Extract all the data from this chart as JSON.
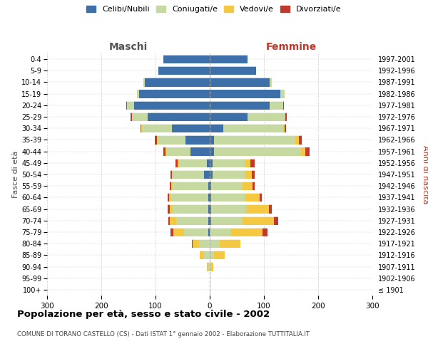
{
  "age_groups": [
    "100+",
    "95-99",
    "90-94",
    "85-89",
    "80-84",
    "75-79",
    "70-74",
    "65-69",
    "60-64",
    "55-59",
    "50-54",
    "45-49",
    "40-44",
    "35-39",
    "30-34",
    "25-29",
    "20-24",
    "15-19",
    "10-14",
    "5-9",
    "0-4"
  ],
  "birth_years": [
    "≤ 1901",
    "1902-1906",
    "1907-1911",
    "1912-1916",
    "1917-1921",
    "1922-1926",
    "1927-1931",
    "1932-1936",
    "1937-1941",
    "1942-1946",
    "1947-1951",
    "1952-1956",
    "1957-1961",
    "1962-1966",
    "1967-1971",
    "1972-1976",
    "1977-1981",
    "1982-1986",
    "1987-1991",
    "1992-1996",
    "1997-2001"
  ],
  "male": {
    "celibi": [
      0,
      0,
      0,
      0,
      0,
      2,
      2,
      3,
      3,
      3,
      10,
      5,
      35,
      45,
      70,
      115,
      140,
      130,
      120,
      95,
      85
    ],
    "coniugati": [
      0,
      0,
      3,
      10,
      20,
      45,
      60,
      65,
      68,
      65,
      58,
      52,
      45,
      50,
      55,
      28,
      12,
      4,
      2,
      0,
      0
    ],
    "vedovi": [
      0,
      0,
      2,
      8,
      12,
      20,
      12,
      6,
      4,
      3,
      2,
      2,
      2,
      2,
      1,
      1,
      1,
      0,
      0,
      0,
      0
    ],
    "divorziati": [
      0,
      0,
      0,
      0,
      1,
      5,
      2,
      4,
      3,
      3,
      2,
      4,
      3,
      4,
      2,
      2,
      1,
      0,
      0,
      0,
      0
    ]
  },
  "female": {
    "nubili": [
      0,
      0,
      0,
      0,
      0,
      0,
      2,
      2,
      2,
      3,
      5,
      5,
      8,
      8,
      25,
      70,
      110,
      130,
      110,
      85,
      70
    ],
    "coniugate": [
      0,
      0,
      2,
      8,
      18,
      40,
      58,
      65,
      62,
      58,
      60,
      60,
      160,
      150,
      110,
      68,
      25,
      8,
      4,
      0,
      0
    ],
    "vedove": [
      0,
      0,
      4,
      20,
      38,
      58,
      58,
      42,
      28,
      18,
      12,
      10,
      8,
      6,
      3,
      2,
      1,
      0,
      0,
      0,
      0
    ],
    "divorziate": [
      0,
      0,
      0,
      0,
      1,
      8,
      8,
      6,
      4,
      4,
      6,
      8,
      8,
      6,
      3,
      2,
      1,
      0,
      0,
      0,
      0
    ]
  },
  "colors": {
    "celibi": "#3d6fa8",
    "coniugati": "#c5d9a0",
    "vedovi": "#f5c842",
    "divorziati": "#c0392b"
  },
  "title": "Popolazione per età, sesso e stato civile - 2002",
  "subtitle": "COMUNE DI TORANO CASTELLO (CS) - Dati ISTAT 1° gennaio 2002 - Elaborazione TUTTITALIA.IT",
  "maschi_label": "Maschi",
  "femmine_label": "Femmine",
  "ylabel_left": "Fasce di età",
  "ylabel_right": "Anni di nascita",
  "xlim": 300,
  "background_color": "#ffffff",
  "grid_color": "#cccccc",
  "bar_height": 0.75
}
